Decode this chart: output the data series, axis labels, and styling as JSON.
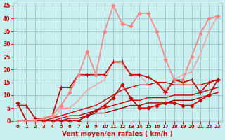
{
  "title": "",
  "xlabel": "Vent moyen/en rafales ( km/h )",
  "ylabel": "",
  "bg_color": "#c8f0f0",
  "grid_color": "#a0c8c8",
  "xlim": [
    -0.5,
    23.5
  ],
  "ylim": [
    0,
    46
  ],
  "yticks": [
    0,
    5,
    10,
    15,
    20,
    25,
    30,
    35,
    40,
    45
  ],
  "xticks": [
    0,
    1,
    2,
    3,
    4,
    5,
    6,
    7,
    8,
    9,
    10,
    11,
    12,
    13,
    14,
    15,
    16,
    17,
    18,
    19,
    20,
    21,
    22,
    23
  ],
  "lines": [
    {
      "x": [
        0,
        1,
        2,
        3,
        4,
        5,
        6,
        7,
        8,
        9,
        10,
        11,
        12,
        13,
        14,
        15,
        16,
        17,
        18,
        19,
        20,
        21,
        22,
        23
      ],
      "y": [
        7,
        0,
        0,
        0,
        0,
        0,
        0,
        0,
        2,
        4,
        6,
        9,
        14,
        9,
        5,
        5,
        6,
        7,
        7,
        6,
        6,
        8,
        10,
        16
      ],
      "color": "#cc0000",
      "lw": 1.2,
      "marker": "D",
      "ms": 2.5,
      "zorder": 5
    },
    {
      "x": [
        0,
        1,
        2,
        3,
        4,
        5,
        6,
        7,
        8,
        9,
        10,
        11,
        12,
        13,
        14,
        15,
        16,
        17,
        18,
        19,
        20,
        21,
        22,
        23
      ],
      "y": [
        0,
        0,
        0,
        0,
        1,
        2,
        3,
        4,
        5,
        6,
        8,
        10,
        12,
        13,
        14,
        14,
        15,
        15,
        14,
        14,
        14,
        14,
        15,
        16
      ],
      "color": "#cc0000",
      "lw": 1.0,
      "marker": null,
      "ms": 0,
      "zorder": 4
    },
    {
      "x": [
        0,
        1,
        2,
        3,
        4,
        5,
        6,
        7,
        8,
        9,
        10,
        11,
        12,
        13,
        14,
        15,
        16,
        17,
        18,
        19,
        20,
        21,
        22,
        23
      ],
      "y": [
        0,
        0,
        0,
        0,
        0,
        1,
        2,
        2,
        3,
        4,
        5,
        6,
        7,
        8,
        8,
        9,
        9,
        9,
        10,
        10,
        10,
        11,
        12,
        13
      ],
      "color": "#cc0000",
      "lw": 1.0,
      "marker": null,
      "ms": 0,
      "zorder": 4
    },
    {
      "x": [
        0,
        1,
        2,
        3,
        4,
        5,
        6,
        7,
        8,
        9,
        10,
        11,
        12,
        13,
        14,
        15,
        16,
        17,
        18,
        19,
        20,
        21,
        22,
        23
      ],
      "y": [
        0,
        0,
        0,
        0,
        0,
        0,
        1,
        1,
        2,
        3,
        3,
        4,
        5,
        6,
        6,
        7,
        7,
        7,
        8,
        8,
        8,
        9,
        10,
        11
      ],
      "color": "#990000",
      "lw": 1.0,
      "marker": null,
      "ms": 0,
      "zorder": 3
    },
    {
      "x": [
        0,
        1,
        2,
        3,
        4,
        5,
        6,
        7,
        8,
        9,
        10,
        11,
        12,
        13,
        14,
        15,
        16,
        17,
        18,
        19,
        20,
        21,
        22,
        23
      ],
      "y": [
        6,
        6,
        1,
        1,
        2,
        13,
        13,
        18,
        18,
        18,
        18,
        23,
        23,
        18,
        18,
        17,
        15,
        11,
        16,
        15,
        16,
        11,
        15,
        16
      ],
      "color": "#cc0000",
      "lw": 1.2,
      "marker": "+",
      "ms": 4,
      "zorder": 5
    },
    {
      "x": [
        0,
        1,
        2,
        3,
        4,
        5,
        6,
        7,
        8,
        9,
        10,
        11,
        12,
        13,
        14,
        15,
        16,
        17,
        18,
        19,
        20,
        21,
        22,
        23
      ],
      "y": [
        0,
        0,
        0,
        1,
        2,
        6,
        11,
        18,
        27,
        18,
        35,
        45,
        38,
        37,
        42,
        42,
        35,
        24,
        16,
        16,
        25,
        34,
        40,
        41
      ],
      "color": "#ff8080",
      "lw": 1.2,
      "marker": "D",
      "ms": 2.5,
      "zorder": 6
    },
    {
      "x": [
        0,
        1,
        2,
        3,
        4,
        5,
        6,
        7,
        8,
        9,
        10,
        11,
        12,
        13,
        14,
        15,
        16,
        17,
        18,
        19,
        20,
        21,
        22,
        23
      ],
      "y": [
        0,
        0,
        0,
        0,
        0,
        5,
        5,
        8,
        12,
        14,
        16,
        23,
        22,
        18,
        18,
        14,
        15,
        12,
        16,
        18,
        19,
        26,
        35,
        41
      ],
      "color": "#ff9999",
      "lw": 1.0,
      "marker": null,
      "ms": 0,
      "zorder": 3
    }
  ]
}
